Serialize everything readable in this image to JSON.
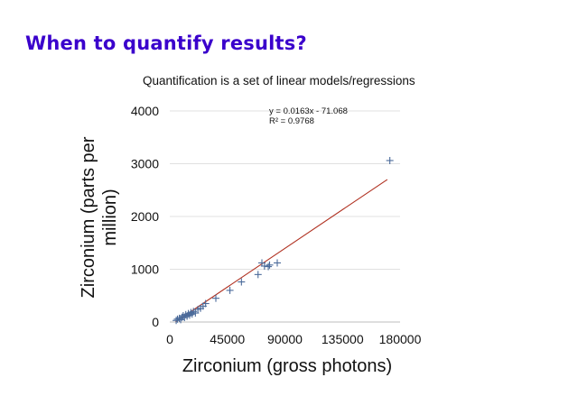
{
  "slide": {
    "title": "When to quantify results?",
    "subtitle": "Quantification is a set of linear models/regressions"
  },
  "chart_data": {
    "type": "scatter",
    "xlabel": "Zirconium (gross photons)",
    "ylabel_lines": [
      "Zirconium (parts per",
      "million)"
    ],
    "xlim": [
      0,
      180000
    ],
    "ylim": [
      0,
      4000
    ],
    "x_ticks": [
      "0",
      "45000",
      "90000",
      "135000",
      "180000"
    ],
    "y_ticks": [
      "0",
      "1000",
      "2000",
      "3000",
      "4000"
    ],
    "x_tick_values": [
      0,
      45000,
      90000,
      135000,
      180000
    ],
    "y_tick_values": [
      0,
      1000,
      2000,
      3000,
      4000
    ],
    "grid": "horizontal",
    "marker": "plus",
    "marker_color": "#4a6a9a",
    "trend_color": "#b03020",
    "trendline": {
      "equation": "y = 0.0163x - 71.068",
      "r2": "R² = 0.9768",
      "slope": 0.0163,
      "intercept": -71.068,
      "x_range": [
        4500,
        170000
      ]
    },
    "series": [
      {
        "points": [
          [
            5000,
            30
          ],
          [
            6000,
            55
          ],
          [
            7500,
            70
          ],
          [
            8500,
            45
          ],
          [
            9500,
            90
          ],
          [
            10500,
            120
          ],
          [
            11500,
            85
          ],
          [
            12500,
            140
          ],
          [
            13500,
            110
          ],
          [
            14500,
            160
          ],
          [
            15500,
            130
          ],
          [
            16500,
            180
          ],
          [
            17500,
            150
          ],
          [
            18500,
            200
          ],
          [
            20000,
            170
          ],
          [
            22000,
            240
          ],
          [
            24000,
            260
          ],
          [
            26000,
            300
          ],
          [
            28000,
            350
          ],
          [
            36000,
            450
          ],
          [
            47000,
            600
          ],
          [
            56000,
            760
          ],
          [
            69000,
            900
          ],
          [
            72000,
            1120
          ],
          [
            74000,
            1060
          ],
          [
            77000,
            1050
          ],
          [
            78000,
            1080
          ],
          [
            84000,
            1120
          ],
          [
            172000,
            3060
          ]
        ]
      }
    ]
  }
}
